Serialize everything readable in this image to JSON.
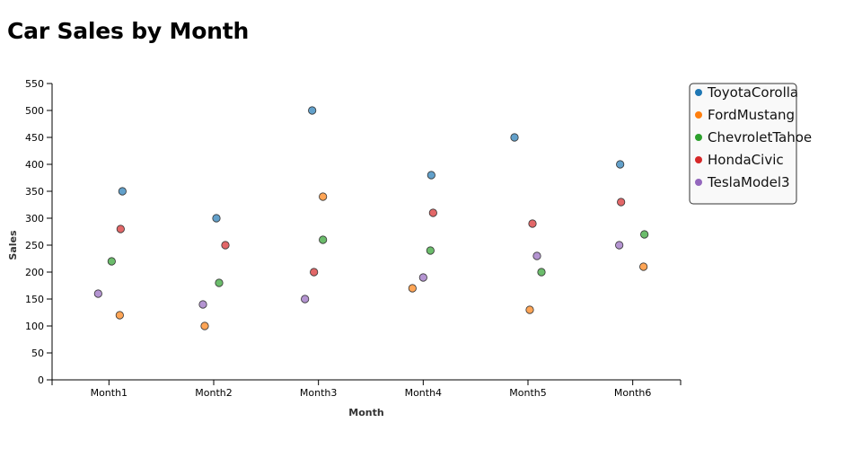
{
  "chart_data": {
    "type": "scatter",
    "title": "Car Sales by Month",
    "xlabel": "Month",
    "ylabel": "Sales",
    "categories": [
      "Month1",
      "Month2",
      "Month3",
      "Month4",
      "Month5",
      "Month6"
    ],
    "ylim": [
      0,
      550
    ],
    "yticks": [
      0,
      50,
      100,
      150,
      200,
      250,
      300,
      350,
      400,
      450,
      500,
      550
    ],
    "grid": false,
    "legend_position": "top-right",
    "series": [
      {
        "name": "ToyotaCorolla",
        "color": "#1f77b4",
        "values": [
          350,
          300,
          500,
          380,
          450,
          400
        ]
      },
      {
        "name": "FordMustang",
        "color": "#ff7f0e",
        "values": [
          120,
          100,
          340,
          170,
          130,
          210
        ]
      },
      {
        "name": "ChevroletTahoe",
        "color": "#2ca02c",
        "values": [
          220,
          180,
          260,
          240,
          200,
          270
        ]
      },
      {
        "name": "HondaCivic",
        "color": "#d62728",
        "values": [
          280,
          250,
          200,
          310,
          290,
          330
        ]
      },
      {
        "name": "TeslaModel3",
        "color": "#9467bd",
        "values": [
          160,
          140,
          150,
          190,
          230,
          250
        ]
      }
    ]
  }
}
